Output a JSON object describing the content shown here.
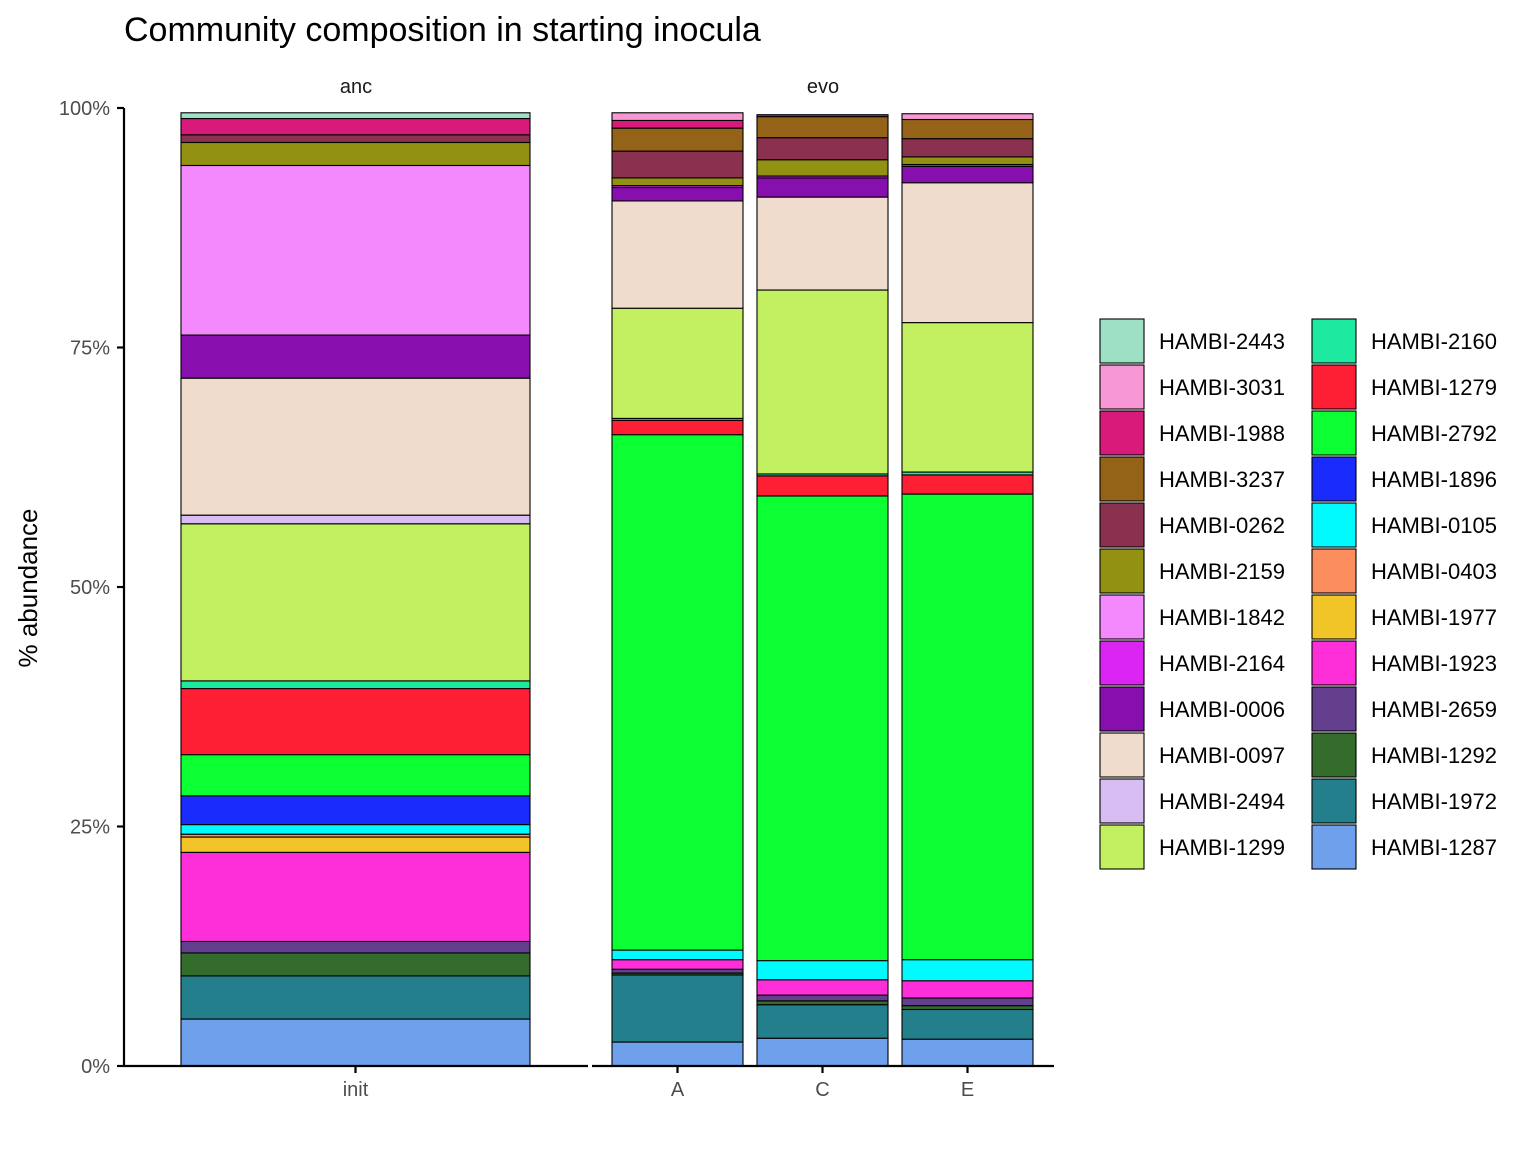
{
  "chart_data": {
    "type": "bar",
    "stacked": true,
    "title": "Community composition in starting inocula",
    "xlabel": "",
    "ylabel": "% abundance",
    "ylim": [
      0,
      1
    ],
    "y_ticks": [
      "0%",
      "25%",
      "50%",
      "75%",
      "100%"
    ],
    "grid": false,
    "legend_position": "right",
    "facets": [
      {
        "label": "anc",
        "categories": [
          "init"
        ]
      },
      {
        "label": "evo",
        "categories": [
          "A",
          "C",
          "E"
        ]
      }
    ],
    "legend_order": [
      "HAMBI-2443",
      "HAMBI-3031",
      "HAMBI-1988",
      "HAMBI-3237",
      "HAMBI-0262",
      "HAMBI-2159",
      "HAMBI-1842",
      "HAMBI-2164",
      "HAMBI-0006",
      "HAMBI-0097",
      "HAMBI-2494",
      "HAMBI-1299",
      "HAMBI-2160",
      "HAMBI-1279",
      "HAMBI-2792",
      "HAMBI-1896",
      "HAMBI-0105",
      "HAMBI-0403",
      "HAMBI-1977",
      "HAMBI-1923",
      "HAMBI-2659",
      "HAMBI-1292",
      "HAMBI-1972",
      "HAMBI-1287"
    ],
    "series": [
      {
        "name": "HAMBI-2443",
        "color": "#9EE0C6",
        "values": [
          0.006,
          0.0,
          0.0,
          0.0
        ]
      },
      {
        "name": "HAMBI-3031",
        "color": "#F897D6",
        "values": [
          0.0,
          0.008,
          0.0,
          0.006
        ]
      },
      {
        "name": "HAMBI-1988",
        "color": "#D81B7A",
        "values": [
          0.017,
          0.008,
          0.002,
          0.0
        ]
      },
      {
        "name": "HAMBI-3237",
        "color": "#956318",
        "values": [
          0.0,
          0.024,
          0.022,
          0.02
        ]
      },
      {
        "name": "HAMBI-0262",
        "color": "#8B3150",
        "values": [
          0.008,
          0.028,
          0.023,
          0.019
        ]
      },
      {
        "name": "HAMBI-2159",
        "color": "#939112",
        "values": [
          0.024,
          0.008,
          0.017,
          0.008
        ]
      },
      {
        "name": "HAMBI-1842",
        "color": "#F389FC",
        "values": [
          0.177,
          0.0,
          0.0,
          0.0
        ]
      },
      {
        "name": "HAMBI-2164",
        "color": "#DA25F2",
        "values": [
          0.0,
          0.002,
          0.002,
          0.002
        ]
      },
      {
        "name": "HAMBI-0006",
        "color": "#860FAE",
        "values": [
          0.045,
          0.014,
          0.02,
          0.017
        ]
      },
      {
        "name": "HAMBI-0097",
        "color": "#F0DCCD",
        "values": [
          0.143,
          0.112,
          0.097,
          0.146
        ]
      },
      {
        "name": "HAMBI-2494",
        "color": "#D8BDF3",
        "values": [
          0.009,
          0.0,
          0.0,
          0.0
        ]
      },
      {
        "name": "HAMBI-1299",
        "color": "#C2F061",
        "values": [
          0.164,
          0.115,
          0.192,
          0.156
        ]
      },
      {
        "name": "HAMBI-2160",
        "color": "#1DE9A0",
        "values": [
          0.008,
          0.002,
          0.002,
          0.003
        ]
      },
      {
        "name": "HAMBI-1279",
        "color": "#FE1F35",
        "values": [
          0.069,
          0.015,
          0.021,
          0.02
        ]
      },
      {
        "name": "HAMBI-2792",
        "color": "#0CFF33",
        "values": [
          0.043,
          0.538,
          0.485,
          0.486
        ]
      },
      {
        "name": "HAMBI-1896",
        "color": "#1A2CFC",
        "values": [
          0.03,
          0.0,
          0.0,
          0.0
        ]
      },
      {
        "name": "HAMBI-0105",
        "color": "#00FAFE",
        "values": [
          0.01,
          0.01,
          0.02,
          0.022
        ]
      },
      {
        "name": "HAMBI-0403",
        "color": "#FC8E5E",
        "values": [
          0.003,
          0.0,
          0.0,
          0.0
        ]
      },
      {
        "name": "HAMBI-1977",
        "color": "#F1C428",
        "values": [
          0.016,
          0.0,
          0.0,
          0.0
        ]
      },
      {
        "name": "HAMBI-1923",
        "color": "#FE2ED9",
        "values": [
          0.093,
          0.01,
          0.016,
          0.018
        ]
      },
      {
        "name": "HAMBI-2659",
        "color": "#633F8D",
        "values": [
          0.012,
          0.004,
          0.006,
          0.008
        ]
      },
      {
        "name": "HAMBI-1292",
        "color": "#346C2C",
        "values": [
          0.024,
          0.002,
          0.004,
          0.004
        ]
      },
      {
        "name": "HAMBI-1972",
        "color": "#237F8B",
        "values": [
          0.045,
          0.07,
          0.035,
          0.031
        ]
      },
      {
        "name": "HAMBI-1287",
        "color": "#6EA0EC",
        "values": [
          0.049,
          0.025,
          0.029,
          0.028
        ]
      }
    ]
  }
}
